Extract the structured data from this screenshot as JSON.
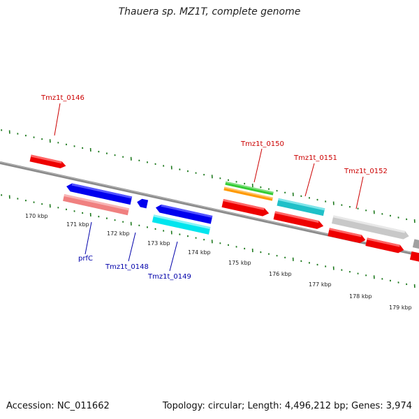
{
  "title": "Thauera sp. MZ1T, complete genome",
  "accession": "Accession: NC_011662",
  "topology": "Topology: circular; Length: 4,496,212 bp; Genes: 3,974",
  "scale_labels": [
    "170 kbp",
    "171 kbp",
    "172 kbp",
    "173 kbp",
    "174 kbp",
    "175 kbp",
    "176 kbp",
    "177 kbp",
    "178 kbp",
    "179 kbp"
  ],
  "gene_labels": {
    "tmz1t_0146": "Tmz1t_0146",
    "tmz1t_0150": "Tmz1t_0150",
    "tmz1t_0151": "Tmz1t_0151",
    "tmz1t_0152": "Tmz1t_0152",
    "prfC": "prfC",
    "tmz1t_0148": "Tmz1t_0148",
    "tmz1t_0149": "Tmz1t_0149"
  },
  "colors": {
    "backbone": "#808080",
    "tick": "#1f7a1f",
    "cds": "#ee0000",
    "label_top": "#cc0000",
    "label_bottom": "#0000aa",
    "blue": "#0000ee",
    "pink": "#f08080",
    "green": "#33cc33",
    "orange": "#ff9900",
    "cyan": "#00e5ee",
    "teal": "#20c0c8",
    "grey": "#c8c8c8"
  }
}
